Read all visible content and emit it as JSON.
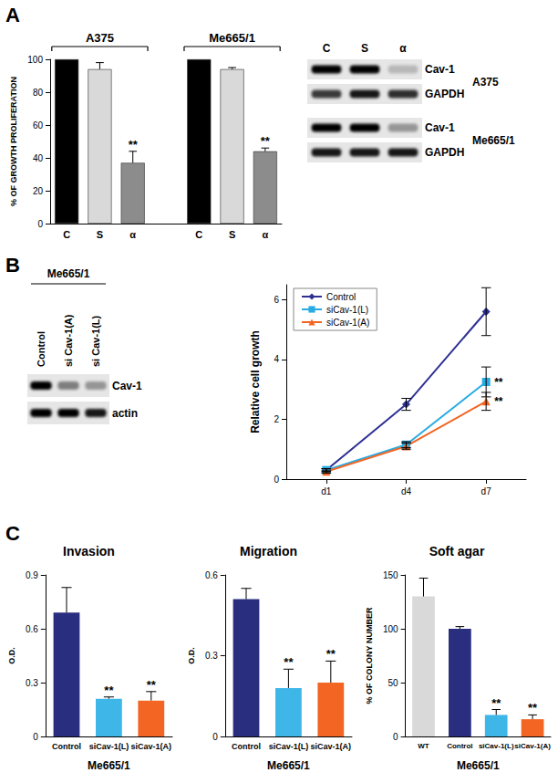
{
  "panel_labels": [
    "A",
    "B",
    "C"
  ],
  "chart_data": [
    {
      "type": "bar",
      "ylabel": "% OF GROWTH PROLIFERATION",
      "categories": [
        "C",
        "S",
        "α",
        null,
        "C",
        "S",
        "α"
      ],
      "values": [
        100,
        94,
        37,
        null,
        100,
        94,
        44
      ],
      "errors": [
        0,
        4,
        7,
        null,
        0,
        1,
        2
      ],
      "colors": [
        "#000000",
        "#d9d9d9",
        "#8c8c8c",
        null,
        "#000000",
        "#d9d9d9",
        "#8c8c8c"
      ],
      "annotations": [
        null,
        null,
        "**",
        null,
        null,
        null,
        "**"
      ],
      "groups": [
        {
          "label": "A375",
          "from": 0,
          "to": 2
        },
        {
          "label": "Me665/1",
          "from": 4,
          "to": 6
        }
      ],
      "ylim": [
        0,
        100
      ],
      "yticks": [
        0,
        20,
        40,
        60,
        80,
        100
      ]
    },
    {
      "type": "line",
      "ylabel": "Relative cell growth",
      "categories": [
        "d1",
        "d4",
        "d7"
      ],
      "series": [
        {
          "name": "Control",
          "color": "#2e3192",
          "marker": "diamond",
          "values": [
            0.3,
            2.5,
            5.6
          ],
          "errors": [
            0.05,
            0.2,
            0.8
          ],
          "annotations": [
            null,
            null,
            null
          ]
        },
        {
          "name": "siCav-1(L)",
          "color": "#29abe2",
          "marker": "square",
          "values": [
            0.3,
            1.15,
            3.25
          ],
          "errors": [
            0.05,
            0.1,
            0.5
          ],
          "annotations": [
            null,
            null,
            "**"
          ]
        },
        {
          "name": "siCav-1(A)",
          "color": "#f26522",
          "marker": "triangle",
          "values": [
            0.25,
            1.1,
            2.6
          ],
          "errors": [
            0.05,
            0.1,
            0.3
          ],
          "annotations": [
            null,
            null,
            "**"
          ]
        }
      ],
      "ylim": [
        0,
        6.5
      ],
      "yticks": [
        0,
        2,
        4,
        6
      ],
      "legend": "upper left"
    },
    {
      "type": "bar",
      "title": "Invasion",
      "ylabel": "O.D.",
      "xlabel": "Me665/1",
      "categories": [
        "Control",
        "siCav-1(L)",
        "siCav-1(A)"
      ],
      "values": [
        0.69,
        0.21,
        0.2
      ],
      "errors": [
        0.14,
        0.01,
        0.05
      ],
      "colors": [
        "#2a2e7e",
        "#3fb6e8",
        "#f26522"
      ],
      "annotations": [
        null,
        "**",
        "**"
      ],
      "ylim": [
        0,
        0.9
      ],
      "yticks": [
        0,
        0.3,
        0.6,
        0.9
      ]
    },
    {
      "type": "bar",
      "title": "Migration",
      "ylabel": "O.D.",
      "xlabel": "Me665/1",
      "categories": [
        "Control",
        "siCav-1(L)",
        "siCav-1(A)"
      ],
      "values": [
        0.51,
        0.18,
        0.2
      ],
      "errors": [
        0.04,
        0.07,
        0.08
      ],
      "colors": [
        "#2a2e7e",
        "#3fb6e8",
        "#f26522"
      ],
      "annotations": [
        null,
        "**",
        "**"
      ],
      "ylim": [
        0,
        0.6
      ],
      "yticks": [
        0,
        0.3,
        0.6
      ]
    },
    {
      "type": "bar",
      "title": "Soft agar",
      "ylabel": "% OF COLONY NUMBER",
      "xlabel": "Me665/1",
      "categories": [
        "WT",
        "Control",
        "siCav-1(L)",
        "siCav-1(A)"
      ],
      "values": [
        130,
        100,
        20,
        16
      ],
      "errors": [
        17,
        2,
        5,
        4
      ],
      "colors": [
        "#d9d9d9",
        "#2a2e7e",
        "#3fb6e8",
        "#f26522"
      ],
      "annotations": [
        null,
        null,
        "**",
        "**"
      ],
      "ylim": [
        0,
        150
      ],
      "yticks": [
        0,
        50,
        100,
        150
      ]
    }
  ],
  "blots": [
    {
      "lanes": [
        "C",
        "S",
        "α"
      ],
      "groups": [
        {
          "label": "A375",
          "rows": [
            {
              "label": "Cav-1",
              "intensity": [
                1,
                1,
                0.2
              ]
            },
            {
              "label": "GAPDH",
              "intensity": [
                0.75,
                0.9,
                0.8
              ]
            }
          ]
        },
        {
          "label": "Me665/1",
          "rows": [
            {
              "label": "Cav-1",
              "intensity": [
                1,
                1,
                0.35
              ]
            },
            {
              "label": "GAPDH",
              "intensity": [
                0.9,
                0.9,
                0.9
              ]
            }
          ]
        }
      ]
    },
    {
      "title": "Me665/1",
      "lanes": [
        "Control",
        "si Cav-1(A)",
        "si Cav-1(L)"
      ],
      "groups": [
        {
          "rows": [
            {
              "label": "Cav-1",
              "intensity": [
                1,
                0.45,
                0.35
              ]
            },
            {
              "label": "actin",
              "intensity": [
                1,
                1,
                0.9
              ]
            }
          ]
        }
      ]
    }
  ]
}
